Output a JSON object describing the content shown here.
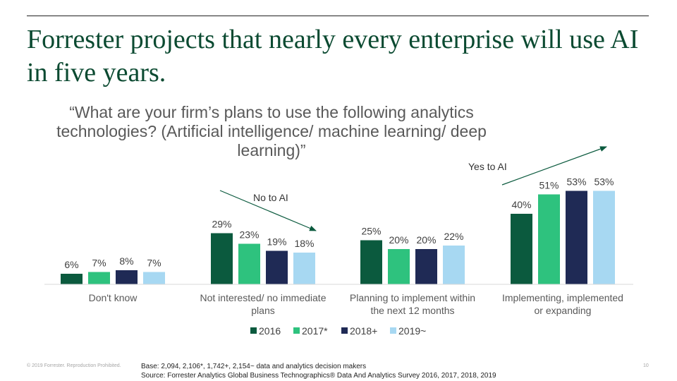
{
  "slide": {
    "title": "Forrester projects that nearly every enterprise will use AI in five years.",
    "question": "“What are your firm’s plans to use the following analytics technologies? (Artificial intelligence/ machine learning/ deep learning)”",
    "copyright": "© 2019 Forrester. Reproduction Prohibited.",
    "base": "Base: 2,094, 2,106*, 1,742+, 2,154~ data and analytics decision makers",
    "source": "Source: Forrester Analytics Global Business Technographics® Data And Analytics Survey 2016, 2017, 2018, 2019",
    "page_number": "10"
  },
  "annotations": {
    "no_ai": "No to AI",
    "yes_ai": "Yes to AI"
  },
  "colors": {
    "2016": "#0b5a3e",
    "2017*": "#2ec27e",
    "2018+": "#1f2a55",
    "2019~": "#a7d8f2",
    "arrow": "#0b5a3e",
    "title": "#0b4a31"
  },
  "chart_data": {
    "type": "bar",
    "categories": [
      [
        "Don't know"
      ],
      [
        "Not interested/ no immediate",
        "plans"
      ],
      [
        "Planning to implement within",
        "the next 12 months"
      ],
      [
        "Implementing, implemented",
        "or expanding"
      ]
    ],
    "series": [
      {
        "name": "2016",
        "values": [
          6,
          29,
          25,
          40
        ],
        "labels": [
          "6%",
          "29%",
          "25%",
          "40%"
        ]
      },
      {
        "name": "2017*",
        "values": [
          7,
          23,
          20,
          51
        ],
        "labels": [
          "7%",
          "23%",
          "20%",
          "51%"
        ]
      },
      {
        "name": "2018+",
        "values": [
          8,
          19,
          20,
          53
        ],
        "labels": [
          "8%",
          "19%",
          "20%",
          "53%"
        ]
      },
      {
        "name": "2019~",
        "values": [
          7,
          18,
          22,
          53
        ],
        "labels": [
          "7%",
          "18%",
          "22%",
          "53%"
        ]
      }
    ],
    "ylim": [
      0,
      60
    ],
    "legend_position": "bottom"
  }
}
